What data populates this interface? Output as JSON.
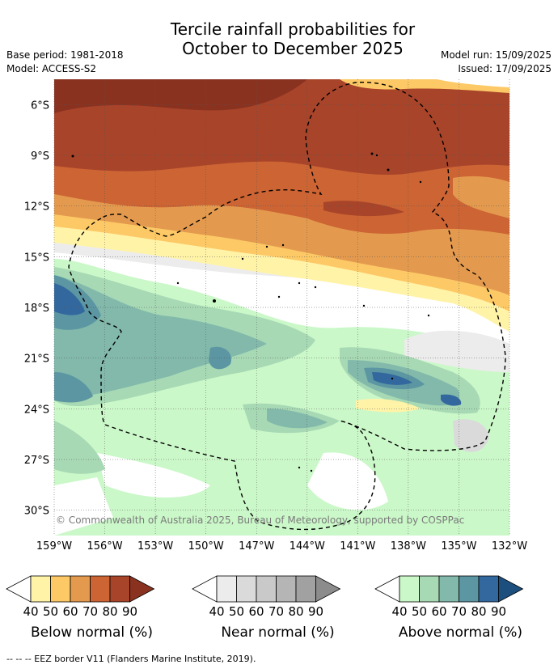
{
  "header": {
    "title_line1": "Tercile rainfall probabilities for",
    "title_line2": "October to December 2025",
    "base_period": "Base period: 1981-2018",
    "model": "Model: ACCESS-S2",
    "model_run": "Model run: 15/09/2025",
    "issued": "Issued: 17/09/2025"
  },
  "map": {
    "lat_labels": [
      "6°S",
      "9°S",
      "12°S",
      "15°S",
      "18°S",
      "21°S",
      "24°S",
      "27°S",
      "30°S"
    ],
    "lat_values": [
      -6,
      -9,
      -12,
      -15,
      -18,
      -21,
      -24,
      -27,
      -30
    ],
    "lon_labels": [
      "159°W",
      "156°W",
      "153°W",
      "150°W",
      "147°W",
      "144°W",
      "141°W",
      "138°W",
      "135°W",
      "132°W"
    ],
    "lon_values": [
      -159,
      -156,
      -153,
      -150,
      -147,
      -144,
      -141,
      -138,
      -135,
      -132
    ],
    "extent": {
      "lon_min": -159,
      "lon_max": -132,
      "lat_min": -31.5,
      "lat_max": -4.5
    },
    "copyright": "© Commonwealth of Australia 2025, Bureau of Meteorology, supported by COSPPac"
  },
  "legends": [
    {
      "title": "Below normal (%)",
      "ticks": [
        "40",
        "50",
        "60",
        "70",
        "80",
        "90"
      ],
      "colors": [
        "#fff3a8",
        "#fdc966",
        "#e49a4e",
        "#cc6434",
        "#a8442a",
        "#8a3220"
      ]
    },
    {
      "title": "Near normal (%)",
      "ticks": [
        "40",
        "50",
        "60",
        "70",
        "80",
        "90"
      ],
      "colors": [
        "#ececec",
        "#dadada",
        "#c9c9c9",
        "#b5b5b5",
        "#a1a1a1",
        "#8c8c8c"
      ]
    },
    {
      "title": "Above normal (%)",
      "ticks": [
        "40",
        "50",
        "60",
        "70",
        "80",
        "90"
      ],
      "colors": [
        "#cbf8c9",
        "#a7d9b4",
        "#82b9ab",
        "#5b96a2",
        "#33689e",
        "#1c4f7e"
      ]
    }
  ],
  "footer": "--  --  -- EEZ border V11 (Flanders Marine Institute, 2019)."
}
